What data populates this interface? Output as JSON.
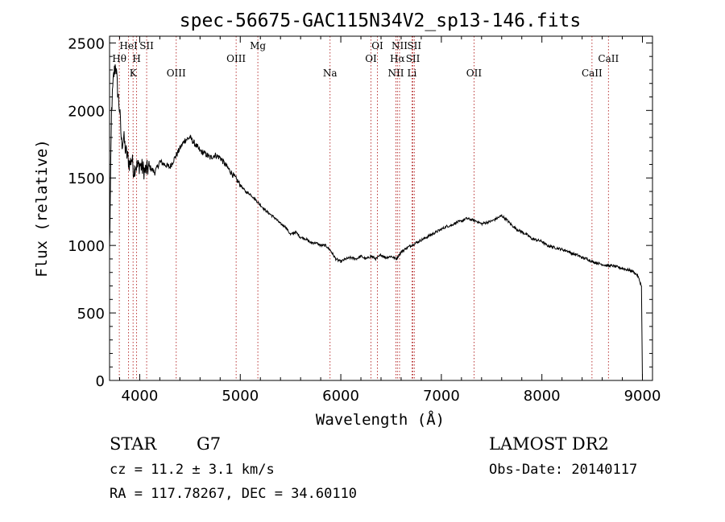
{
  "chart_data": {
    "type": "line",
    "title": "spec-56675-GAC115N34V2_sp13-146.fits",
    "xlabel": "Wavelength (Å)",
    "ylabel": "Flux (relative)",
    "xlim": [
      3700,
      9100
    ],
    "ylim": [
      0,
      2550
    ],
    "xticks": [
      "4000",
      "5000",
      "6000",
      "7000",
      "8000",
      "9000"
    ],
    "xtick_values": [
      4000,
      5000,
      6000,
      7000,
      8000,
      9000
    ],
    "yticks": [
      "0",
      "500",
      "1000",
      "1500",
      "2000",
      "2500"
    ],
    "ytick_values": [
      0,
      500,
      1000,
      1500,
      2000,
      2500
    ],
    "line_color": "#000000",
    "marker_color": "#b22222",
    "series": [
      {
        "x": [
          3700,
          3720,
          3740,
          3760,
          3780,
          3800,
          3820,
          3840,
          3860,
          3880,
          3900,
          3920,
          3940,
          3960,
          3980,
          4000,
          4050,
          4100,
          4150,
          4200,
          4250,
          4300,
          4350,
          4400,
          4450,
          4500,
          4550,
          4600,
          4650,
          4700,
          4750,
          4800,
          4850,
          4900,
          4950,
          5000,
          5050,
          5100,
          5150,
          5200,
          5250,
          5300,
          5350,
          5400,
          5450,
          5500,
          5550,
          5600,
          5650,
          5700,
          5750,
          5800,
          5850,
          5900,
          5950,
          6000,
          6050,
          6100,
          6150,
          6200,
          6250,
          6300,
          6350,
          6400,
          6450,
          6500,
          6550,
          6600,
          6650,
          6700,
          6750,
          6800,
          6850,
          6900,
          6950,
          7000,
          7050,
          7100,
          7150,
          7200,
          7250,
          7300,
          7350,
          7400,
          7450,
          7500,
          7550,
          7600,
          7650,
          7700,
          7750,
          7800,
          7850,
          7900,
          7950,
          8000,
          8050,
          8100,
          8150,
          8200,
          8250,
          8300,
          8350,
          8400,
          8450,
          8500,
          8550,
          8600,
          8650,
          8700,
          8750,
          8800,
          8850,
          8900,
          8950,
          8990,
          9000
        ],
        "y": [
          950,
          2000,
          2250,
          2350,
          2150,
          2000,
          1750,
          1800,
          1700,
          1650,
          1600,
          1650,
          1550,
          1600,
          1580,
          1600,
          1550,
          1580,
          1540,
          1620,
          1600,
          1580,
          1650,
          1720,
          1780,
          1800,
          1750,
          1700,
          1680,
          1650,
          1670,
          1650,
          1600,
          1550,
          1500,
          1450,
          1400,
          1380,
          1340,
          1300,
          1260,
          1230,
          1200,
          1160,
          1140,
          1080,
          1100,
          1060,
          1050,
          1020,
          1020,
          1000,
          1000,
          960,
          900,
          880,
          900,
          910,
          900,
          920,
          900,
          920,
          900,
          930,
          910,
          920,
          900,
          950,
          980,
          1000,
          1020,
          1040,
          1060,
          1080,
          1100,
          1120,
          1140,
          1150,
          1170,
          1180,
          1200,
          1190,
          1180,
          1160,
          1170,
          1180,
          1200,
          1220,
          1190,
          1150,
          1120,
          1100,
          1080,
          1050,
          1040,
          1030,
          1000,
          990,
          980,
          970,
          960,
          940,
          930,
          910,
          900,
          880,
          870,
          860,
          850,
          850,
          840,
          830,
          820,
          810,
          780,
          700,
          0
        ]
      }
    ],
    "lines": [
      {
        "label": "Hθ",
        "x": 3797,
        "row": 2
      },
      {
        "label": "HeI",
        "x": 3889,
        "row": 1
      },
      {
        "label": "K",
        "x": 3934,
        "row": 3
      },
      {
        "label": "H",
        "x": 3969,
        "row": 2
      },
      {
        "label": "SII",
        "x": 4069,
        "row": 1
      },
      {
        "label": "OIII",
        "x": 4363,
        "row": 3
      },
      {
        "label": "OIII",
        "x": 4959,
        "row": 2
      },
      {
        "label": "Mg",
        "x": 5175,
        "row": 1
      },
      {
        "label": "Na",
        "x": 5893,
        "row": 3
      },
      {
        "label": "OI",
        "x": 6300,
        "row": 2
      },
      {
        "label": "OI",
        "x": 6364,
        "row": 1
      },
      {
        "label": "NII",
        "x": 6548,
        "row": 3
      },
      {
        "label": "NII",
        "x": 6584,
        "row": 1
      },
      {
        "label": "Hα",
        "x": 6563,
        "row": 2
      },
      {
        "label": "Li",
        "x": 6708,
        "row": 3
      },
      {
        "label": "SII",
        "x": 6717,
        "row": 2
      },
      {
        "label": "SII",
        "x": 6731,
        "row": 1
      },
      {
        "label": "OII",
        "x": 7325,
        "row": 3
      },
      {
        "label": "CaII",
        "x": 8498,
        "row": 3
      },
      {
        "label": "CaII",
        "x": 8662,
        "row": 2
      }
    ]
  },
  "info": {
    "object_class": "STAR",
    "subclass": "G7",
    "cz": "cz = 11.2 ± 3.1 km/s",
    "coords": "RA = 117.78267, DEC =  34.60110",
    "survey": "LAMOST DR2",
    "obs_date": "Obs-Date: 20140117"
  }
}
